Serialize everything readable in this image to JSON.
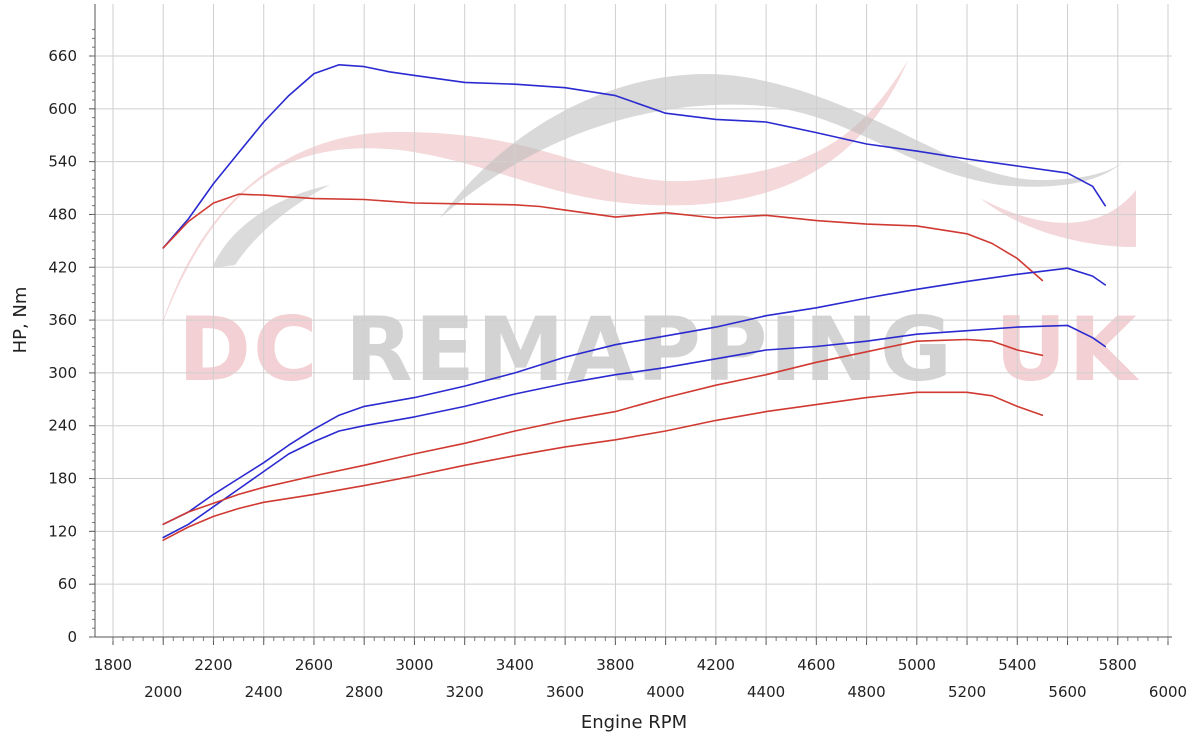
{
  "chart_data": {
    "type": "line",
    "xlabel": "Engine RPM",
    "ylabel": "HP, Nm",
    "xlim": [
      1800,
      6000
    ],
    "ylim": [
      0,
      690
    ],
    "x_ticks_upper": [
      1800,
      2200,
      2600,
      3000,
      3400,
      3800,
      4200,
      4600,
      5000,
      5400,
      5800
    ],
    "x_ticks_lower": [
      2000,
      2400,
      2800,
      3200,
      3600,
      4000,
      4400,
      4800,
      5200,
      5600,
      6000
    ],
    "y_ticks": [
      0,
      60,
      120,
      180,
      240,
      300,
      360,
      420,
      480,
      540,
      600,
      660
    ],
    "grid": true,
    "watermark": {
      "part1": "DC",
      "part2": "REMAPPING",
      "part3": "UK"
    },
    "colors": {
      "blue": "#2a2ad0",
      "red": "#d03a32",
      "grid": "#cfcfcf",
      "axis": "#555555"
    },
    "series": [
      {
        "color": "blue",
        "x": [
          2000,
          2100,
          2200,
          2300,
          2400,
          2500,
          2600,
          2700,
          2800,
          2900,
          3000,
          3200,
          3400,
          3600,
          3800,
          4000,
          4200,
          4400,
          4600,
          4800,
          5000,
          5200,
          5400,
          5600,
          5700,
          5750
        ],
        "y": [
          442,
          475,
          515,
          550,
          585,
          615,
          640,
          650,
          648,
          642,
          638,
          630,
          628,
          624,
          615,
          595,
          588,
          585,
          573,
          560,
          552,
          543,
          535,
          527,
          512,
          490
        ]
      },
      {
        "color": "red",
        "x": [
          2000,
          2100,
          2200,
          2300,
          2400,
          2600,
          2800,
          3000,
          3200,
          3400,
          3500,
          3600,
          3800,
          4000,
          4200,
          4400,
          4600,
          4800,
          5000,
          5200,
          5300,
          5400,
          5500
        ],
        "y": [
          442,
          472,
          493,
          503,
          502,
          498,
          497,
          493,
          492,
          491,
          489,
          485,
          477,
          482,
          476,
          479,
          473,
          469,
          467,
          458,
          447,
          430,
          405
        ]
      },
      {
        "color": "blue",
        "x": [
          2000,
          2100,
          2200,
          2300,
          2400,
          2500,
          2600,
          2700,
          2800,
          3000,
          3200,
          3400,
          3600,
          3800,
          4000,
          4200,
          4400,
          4600,
          4800,
          5000,
          5200,
          5400,
          5600,
          5700,
          5750
        ],
        "y": [
          128,
          142,
          162,
          180,
          198,
          218,
          236,
          252,
          262,
          272,
          285,
          300,
          318,
          332,
          342,
          352,
          365,
          374,
          385,
          395,
          404,
          412,
          419,
          410,
          400
        ]
      },
      {
        "color": "blue",
        "x": [
          2000,
          2100,
          2200,
          2300,
          2400,
          2500,
          2600,
          2700,
          2800,
          3000,
          3200,
          3400,
          3600,
          3800,
          4000,
          4200,
          4400,
          4600,
          4800,
          5000,
          5200,
          5400,
          5600,
          5700,
          5750
        ],
        "y": [
          113,
          128,
          148,
          168,
          188,
          208,
          222,
          234,
          240,
          250,
          262,
          276,
          288,
          298,
          306,
          316,
          326,
          330,
          336,
          344,
          348,
          352,
          354,
          340,
          330
        ]
      },
      {
        "color": "red",
        "x": [
          2000,
          2100,
          2200,
          2300,
          2400,
          2600,
          2800,
          3000,
          3200,
          3400,
          3600,
          3800,
          4000,
          4200,
          4400,
          4600,
          4800,
          5000,
          5200,
          5300,
          5400,
          5500
        ],
        "y": [
          128,
          142,
          152,
          162,
          170,
          183,
          195,
          208,
          220,
          234,
          246,
          256,
          272,
          286,
          298,
          312,
          324,
          336,
          338,
          336,
          326,
          320
        ]
      },
      {
        "color": "red",
        "x": [
          2000,
          2100,
          2200,
          2300,
          2400,
          2600,
          2800,
          3000,
          3200,
          3400,
          3600,
          3800,
          4000,
          4200,
          4400,
          4600,
          4800,
          5000,
          5200,
          5300,
          5400,
          5500
        ],
        "y": [
          110,
          125,
          137,
          146,
          153,
          162,
          172,
          183,
          195,
          206,
          216,
          224,
          234,
          246,
          256,
          264,
          272,
          278,
          278,
          274,
          262,
          252
        ]
      }
    ]
  }
}
